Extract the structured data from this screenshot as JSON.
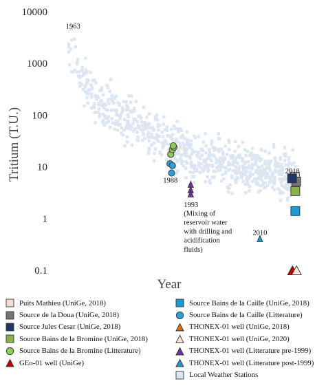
{
  "chart_data": {
    "type": "scatter",
    "y_scale": "log",
    "ylim": [
      0.1,
      10000
    ],
    "y_ticks": [
      "10000",
      "1000",
      "100",
      "10",
      "1",
      "0.1"
    ],
    "ylabel": "Tritium (T.U.)",
    "xlabel": "Year",
    "xlim": [
      1960,
      2021
    ],
    "grid": false,
    "legend_position": "bottom",
    "annotations": [
      {
        "text": "1963",
        "x": 1963,
        "y": 5300
      },
      {
        "text": "1988",
        "x": 1988,
        "y": 5.6
      },
      {
        "text": "1993",
        "x": 1993,
        "y": 1.9
      },
      {
        "text": "(Mixing of",
        "x": 1993,
        "y": 1.28
      },
      {
        "text": "reservoir water",
        "x": 1993,
        "y": 0.86
      },
      {
        "text": "with drilling and",
        "x": 1993,
        "y": 0.58
      },
      {
        "text": "acidification",
        "x": 1993,
        "y": 0.39
      },
      {
        "text": "fluids)",
        "x": 1993,
        "y": 0.26
      },
      {
        "text": "2010",
        "x": 2010,
        "y": 0.55
      },
      {
        "text": "2018",
        "x": 2018,
        "y": 8.5
      }
    ],
    "series": [
      {
        "name": "Puits Mathieu (UniGe, 2018)",
        "marker": "square",
        "color": "#f6dcd6",
        "points": [
          [
            2018.6,
            6.4
          ]
        ]
      },
      {
        "name": "Source de la Doua (UniGe, 2018)",
        "marker": "square",
        "color": "#767676",
        "points": [
          [
            2018.9,
            5.2
          ]
        ]
      },
      {
        "name": "Source Jules Cesar (UniGe, 2018)",
        "marker": "square",
        "color": "#1f3864",
        "points": [
          [
            2017.9,
            6.0
          ]
        ]
      },
      {
        "name": "Source Bains de la Bromine (UniGe, 2018)",
        "marker": "square",
        "color": "#8ab34c",
        "points": [
          [
            2018.7,
            3.4
          ]
        ]
      },
      {
        "name": "Source Bains de la Bromine (Litterature)",
        "marker": "circle",
        "color": "#92c957",
        "points": [
          [
            1988.1,
            17.5
          ],
          [
            1988.5,
            21.5
          ],
          [
            1988.9,
            24.0
          ],
          [
            1988.7,
            25.5
          ]
        ]
      },
      {
        "name": "GEo-01 well (UniGe)",
        "marker": "triangle",
        "color": "#c00000",
        "points": [
          [
            2018.0,
            0.1
          ]
        ]
      },
      {
        "name": "Source Bains de la Caille (UniGe, 2018)",
        "marker": "square",
        "color": "#1e9ad6",
        "points": [
          [
            2018.7,
            1.4
          ]
        ]
      },
      {
        "name": "Source Bains de la Caille (Litterature)",
        "marker": "circle",
        "color": "#2aa0db",
        "points": [
          [
            1987.9,
            11.5
          ],
          [
            1988.5,
            10.6
          ],
          [
            1988.3,
            7.6
          ]
        ]
      },
      {
        "name": "THONEX-01 well (UniGe, 2018)",
        "marker": "triangle",
        "color": "#e46c0a",
        "points": []
      },
      {
        "name": "THONEX-01 well (UniGe, 2020)",
        "marker": "triangle",
        "color": "#fbe5d6",
        "points": [
          [
            2019.0,
            0.1
          ]
        ]
      },
      {
        "name": "THONEX-01 well (Litterature pre-1999)",
        "marker": "triangle",
        "color": "#7030a0",
        "points": [
          [
            1993.0,
            4.6
          ],
          [
            1993.0,
            3.6
          ],
          [
            1993.0,
            3.0
          ]
        ]
      },
      {
        "name": "THONEX-01 well (Litterature post-1999)",
        "marker": "triangle",
        "color": "#1e9ad6",
        "points": [
          [
            2010.0,
            0.41
          ]
        ]
      },
      {
        "name": "Local Weather Stations",
        "marker": "square",
        "color": "#dce6f2",
        "points": []
      }
    ],
    "weather_trend": [
      [
        1963,
        2600
      ],
      [
        1964,
        1500
      ],
      [
        1966,
        480
      ],
      [
        1970,
        230
      ],
      [
        1975,
        110
      ],
      [
        1980,
        60
      ],
      [
        1985,
        35
      ],
      [
        1990,
        22
      ],
      [
        1995,
        15
      ],
      [
        2000,
        11.5
      ],
      [
        2005,
        9.5
      ],
      [
        2010,
        8
      ],
      [
        2015,
        7.5
      ],
      [
        2019,
        7
      ]
    ]
  }
}
